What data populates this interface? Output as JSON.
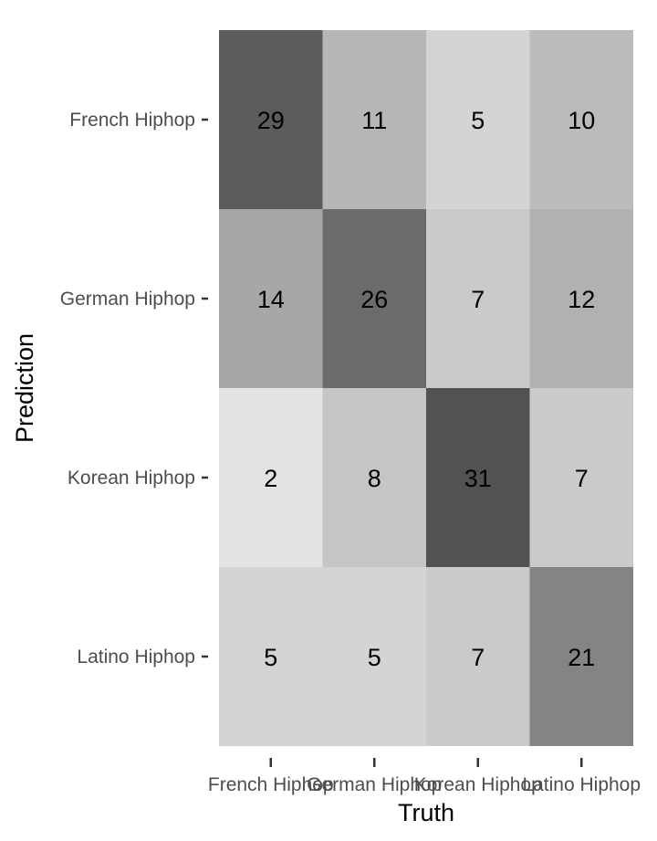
{
  "chart_data": {
    "type": "heatmap",
    "xlabel": "Truth",
    "ylabel": "Prediction",
    "x_categories": [
      "French Hiphop",
      "German Hiphop",
      "Korean Hiphop",
      "Latino Hiphop"
    ],
    "y_categories": [
      "French Hiphop",
      "German Hiphop",
      "Korean Hiphop",
      "Latino Hiphop"
    ],
    "values": [
      [
        29,
        11,
        5,
        10
      ],
      [
        14,
        26,
        7,
        12
      ],
      [
        2,
        8,
        31,
        7
      ],
      [
        5,
        5,
        7,
        21
      ]
    ],
    "color_scale": {
      "low": "#e3e3e3",
      "high": "#525252"
    },
    "legend": "none"
  }
}
